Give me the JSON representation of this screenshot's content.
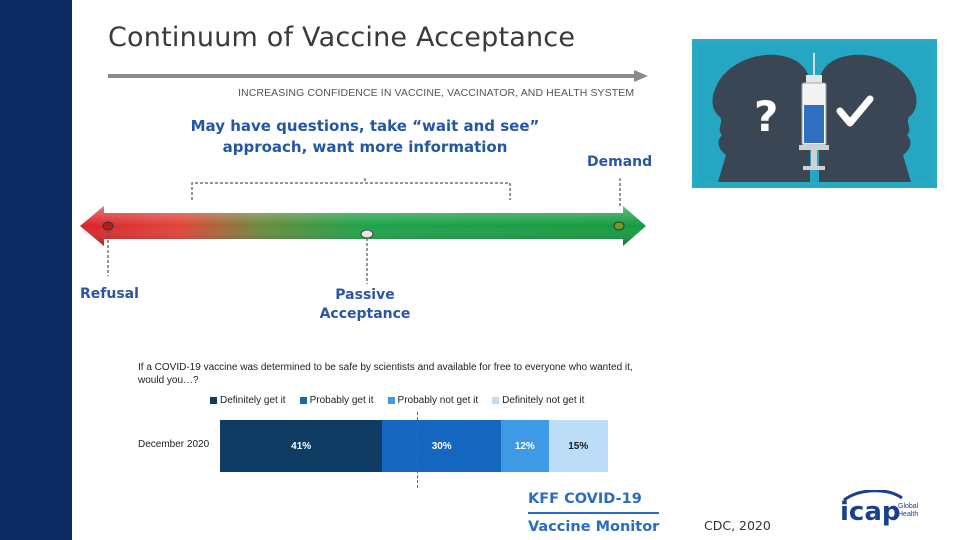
{
  "slide": {
    "title": "Continuum of Vaccine Acceptance",
    "subtitle": "INCREASING CONFIDENCE IN VACCINE, VACCINATOR, AND HEALTH SYSTEM",
    "callout_line1": "May have questions, take “wait and see”",
    "callout_line2": "approach, want more information",
    "demand_label": "Demand",
    "refusal_label": "Refusal",
    "passive_line1": "Passive",
    "passive_line2": "Acceptance",
    "citation": "CDC, 2020",
    "colors": {
      "sidebar": "#0d2b63",
      "label_blue": "#2a56a4",
      "spectrum_red": "#e0262b",
      "spectrum_green": "#1ea34a"
    }
  },
  "illustration": {
    "icons": [
      "head-silhouette-icon",
      "question-mark-icon",
      "syringe-icon",
      "checkmark-icon"
    ],
    "question_glyph": "?",
    "check_glyph": "✔"
  },
  "survey": {
    "question": "If a COVID-19 vaccine was determined to be safe by scientists and available for free to everyone who wanted it, would you…?",
    "legend": [
      {
        "label": "Definitely get it",
        "color": "#0f3c63"
      },
      {
        "label": "Probably get it",
        "color": "#1566bf"
      },
      {
        "label": "Probably not get it",
        "color": "#3f9ae6"
      },
      {
        "label": "Definitely not get it",
        "color": "#bcdcf7"
      }
    ],
    "row_label": "December 2020",
    "segments": [
      {
        "value": 41,
        "label": "41%",
        "color": "#0f3c63",
        "text_color": "#ffffff"
      },
      {
        "value": 30,
        "label": "30%",
        "color": "#1566bf",
        "text_color": "#ffffff"
      },
      {
        "value": 12,
        "label": "12%",
        "color": "#3f9ae6",
        "text_color": "#ffffff"
      },
      {
        "value": 15,
        "label": "15%",
        "color": "#bcdcf7",
        "text_color": "#1a1a1a"
      }
    ],
    "source_line1": "KFF COVID-19",
    "source_line2": "Vaccine Monitor"
  },
  "logo": {
    "text": "icap",
    "tag_line1": "Global",
    "tag_line2": "Health"
  }
}
